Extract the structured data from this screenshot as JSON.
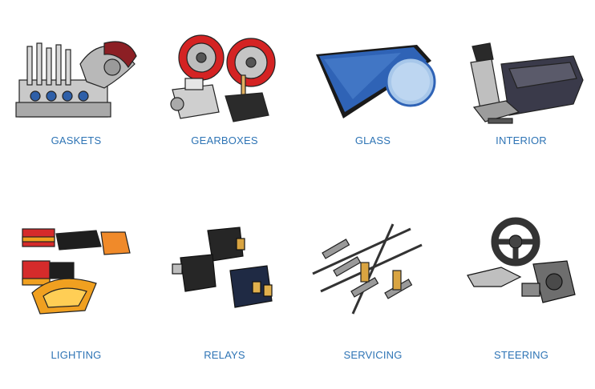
{
  "categories": [
    {
      "label": "GASKETS",
      "icon": "engine-gasket-icon"
    },
    {
      "label": "GEARBOXES",
      "icon": "gearbox-icon"
    },
    {
      "label": "GLASS",
      "icon": "windscreen-glass-icon"
    },
    {
      "label": "INTERIOR",
      "icon": "car-seat-icon"
    },
    {
      "label": "LIGHTING",
      "icon": "car-lights-icon"
    },
    {
      "label": "RELAYS",
      "icon": "relay-icon"
    },
    {
      "label": "SERVICING",
      "icon": "spark-plug-wiper-icon"
    },
    {
      "label": "STEERING",
      "icon": "steering-wheel-icon"
    }
  ],
  "colors": {
    "label": "#2e74b5",
    "background": "#ffffff"
  }
}
